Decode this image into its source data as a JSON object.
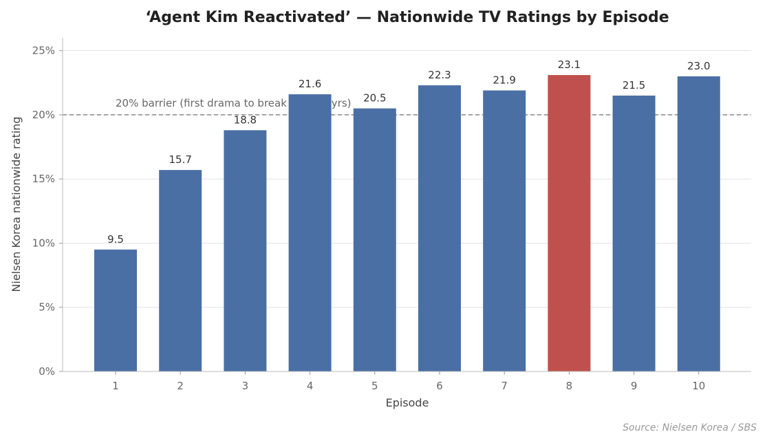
{
  "chart_data": {
    "type": "bar",
    "title": "‘Agent Kim Reactivated’ — Nationwide TV Ratings by Episode",
    "xlabel": "Episode",
    "ylabel": "Nielsen Korea nationwide rating",
    "categories": [
      "1",
      "2",
      "3",
      "4",
      "5",
      "6",
      "7",
      "8",
      "9",
      "10"
    ],
    "values": [
      9.5,
      15.7,
      18.8,
      21.6,
      20.5,
      22.3,
      21.9,
      23.1,
      21.5,
      23.0
    ],
    "value_labels": [
      "9.5",
      "15.7",
      "18.8",
      "21.6",
      "20.5",
      "22.3",
      "21.9",
      "23.1",
      "21.5",
      "23.0"
    ],
    "ylim": [
      0,
      26
    ],
    "yticks": [
      0,
      5,
      10,
      15,
      20,
      25
    ],
    "ytick_labels": [
      "0%",
      "5%",
      "10%",
      "15%",
      "20%",
      "25%"
    ],
    "grid": "horizontal",
    "bar_color": "#4a6fa5",
    "highlight_color": "#c0504d",
    "highlight_index": 7,
    "reference_line": {
      "value": 20,
      "label": "20% barrier (first drama to break it in ~2 yrs)"
    },
    "source": "Source: Nielsen Korea / SBS"
  }
}
